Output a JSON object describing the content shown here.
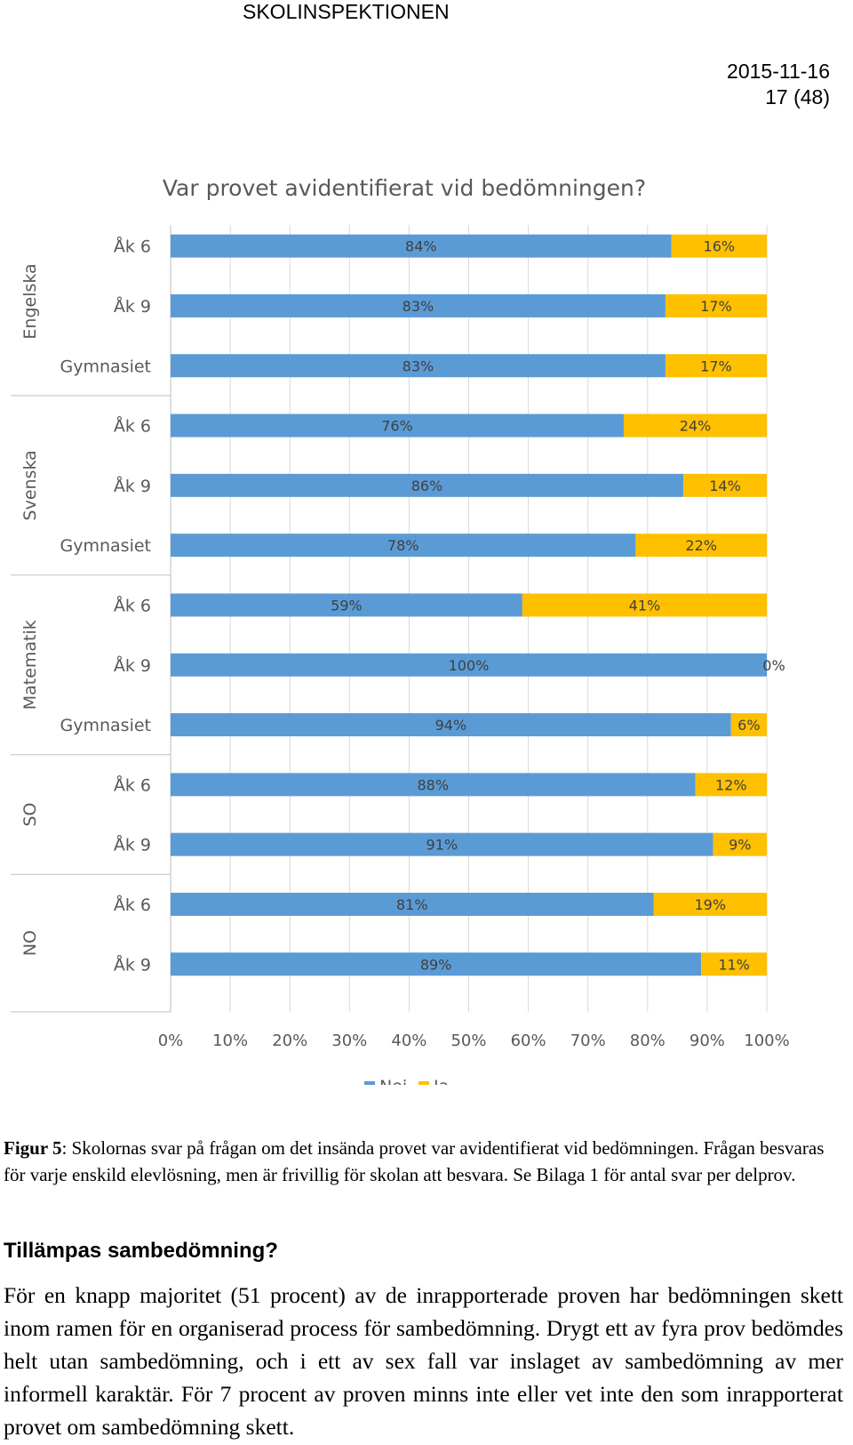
{
  "header": {
    "organization": "SKOLINSPEKTIONEN",
    "date": "2015-11-16",
    "page": "17 (48)"
  },
  "chart_data": {
    "type": "bar",
    "orientation": "horizontal",
    "stacked": true,
    "title": "Var provet avidentifierat vid bedömningen?",
    "xlabel": "",
    "ylabel": "",
    "xlim": [
      0,
      100
    ],
    "x_ticks": [
      "0%",
      "10%",
      "20%",
      "30%",
      "40%",
      "50%",
      "60%",
      "70%",
      "80%",
      "90%",
      "100%"
    ],
    "legend": {
      "position": "bottom",
      "entries": [
        "Nej",
        "Ja"
      ]
    },
    "colors": {
      "Nej": "#5b9bd5",
      "Ja": "#ffc000"
    },
    "groups": [
      {
        "name": "Engelska",
        "categories": [
          "Åk 6",
          "Åk 9",
          "Gymnasiet"
        ]
      },
      {
        "name": "Svenska",
        "categories": [
          "Åk 6",
          "Åk 9",
          "Gymnasiet"
        ]
      },
      {
        "name": "Matematik",
        "categories": [
          "Åk 6",
          "Åk 9",
          "Gymnasiet"
        ]
      },
      {
        "name": "SO",
        "categories": [
          "Åk 6",
          "Åk 9"
        ]
      },
      {
        "name": "NO",
        "categories": [
          "Åk 6",
          "Åk 9"
        ]
      }
    ],
    "series": [
      {
        "name": "Nej",
        "values": [
          84,
          83,
          83,
          76,
          86,
          78,
          59,
          100,
          94,
          88,
          91,
          81,
          89
        ]
      },
      {
        "name": "Ja",
        "values": [
          16,
          17,
          17,
          24,
          14,
          22,
          41,
          0,
          6,
          12,
          9,
          19,
          11
        ]
      }
    ]
  },
  "caption": {
    "label": "Figur 5",
    "text": ": Skolornas svar på frågan om det insända provet var avidentifierat vid bedömningen. Frågan besvaras för varje enskild elevlösning, men är frivillig för skolan att besvara. Se Bilaga 1 för antal svar per delprov."
  },
  "section": {
    "heading": "Tillämpas sambedömning?",
    "paragraph": "För en knapp majoritet (51 procent) av de inrapporterade proven har bedömningen skett inom ramen för en organiserad process för sambedömning. Drygt ett av fyra prov bedömdes helt utan sambedömning, och i ett av sex fall var inslaget av sambedömning av mer informell karaktär. För 7 procent av proven minns inte eller vet inte den som inrapporterat provet om sambedömning skett."
  }
}
